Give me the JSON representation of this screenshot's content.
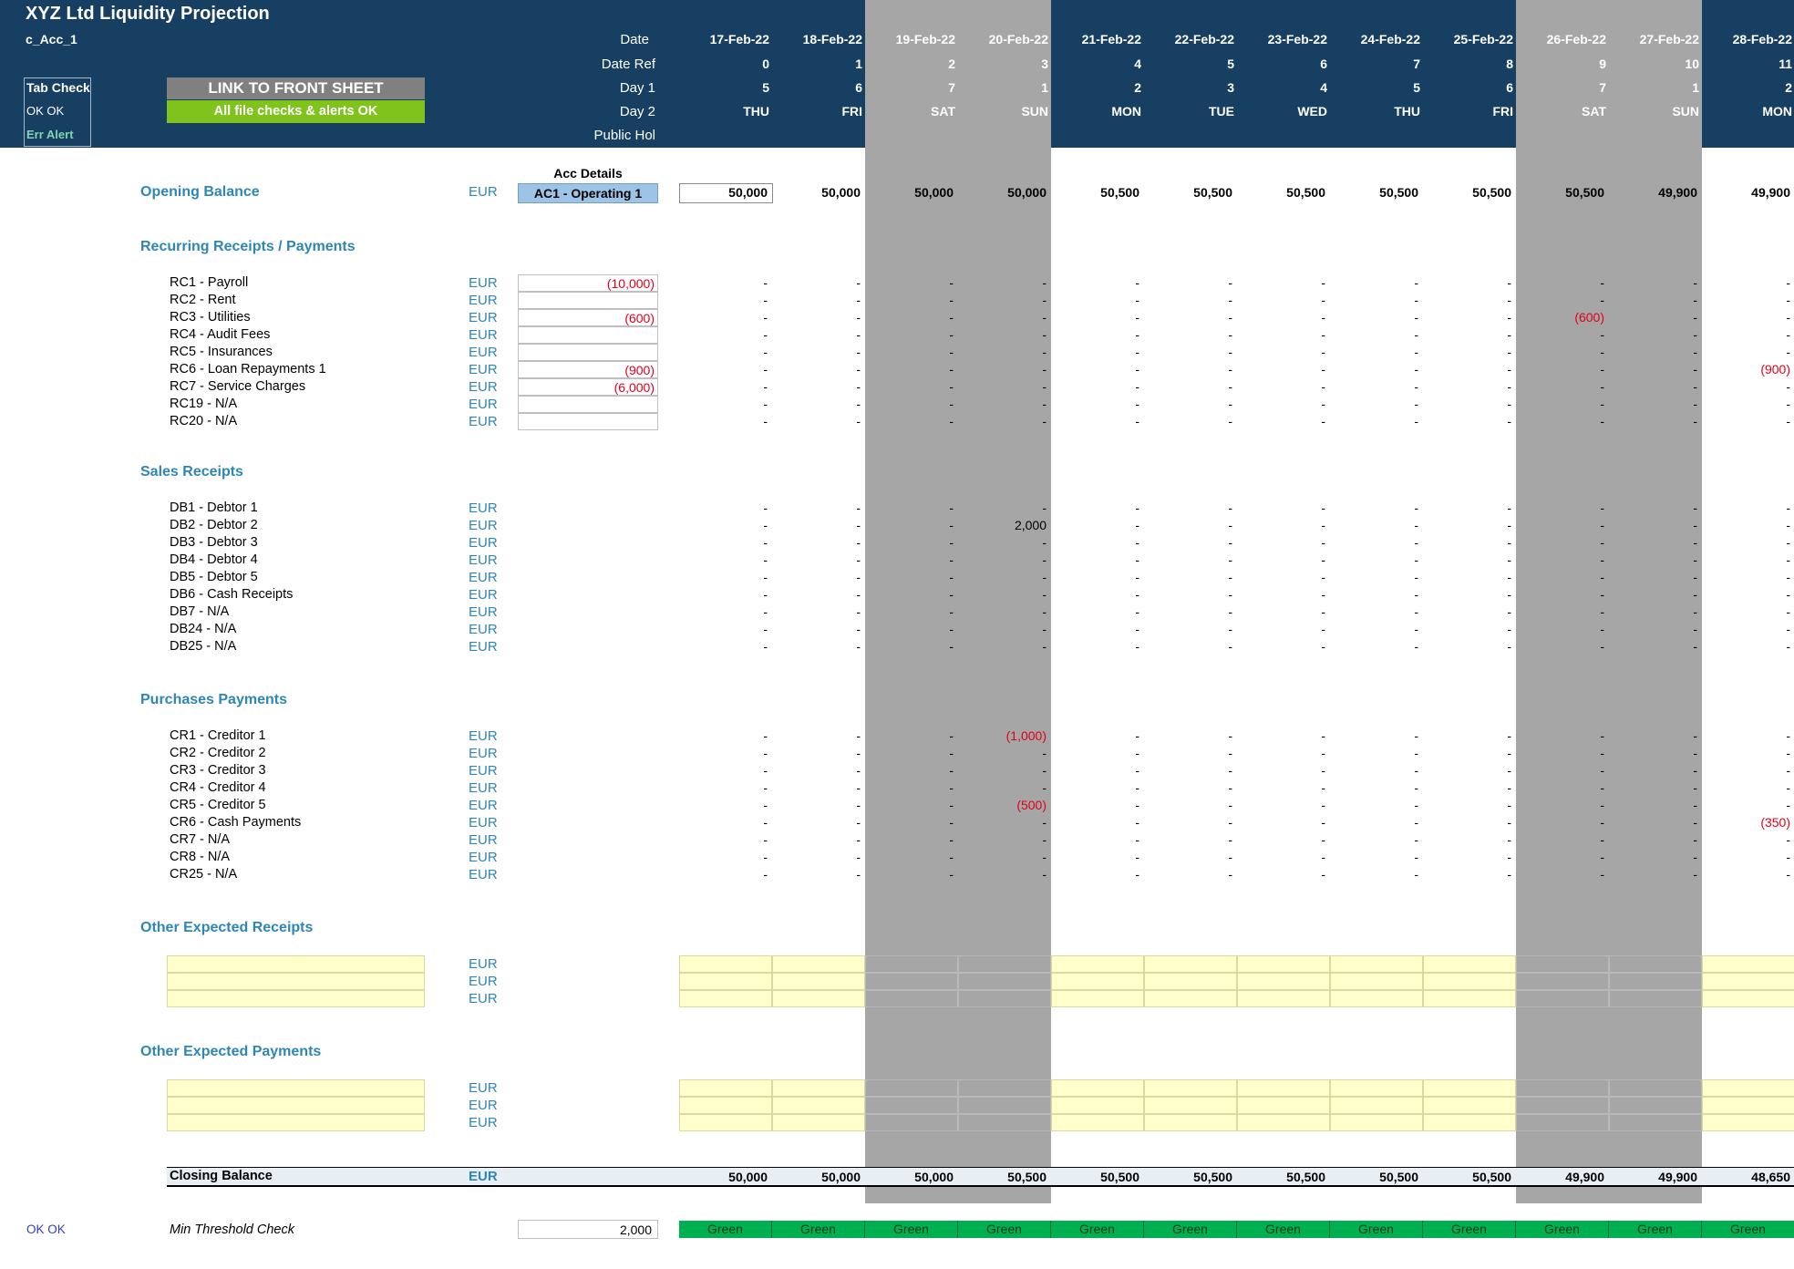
{
  "header": {
    "title": "XYZ Ltd Liquidity Projection",
    "sheet_code": "c_Acc_1",
    "row_labels": {
      "date": "Date",
      "date_ref": "Date Ref",
      "day1": "Day 1",
      "day2": "Day 2",
      "public_hol": "Public Hol"
    },
    "tab_check": {
      "label": "Tab Check",
      "status": "OK OK",
      "err": "Err Alert"
    },
    "link_button": "LINK TO FRONT SHEET",
    "file_checks": "All file checks & alerts OK"
  },
  "colors": {
    "header_bg": "#173f62",
    "weekend": "#a6a6a6",
    "accent": "#2e86b5",
    "negative": "#e0001b",
    "green_status": "#00b050",
    "link_button": "#808080",
    "checks_ok": "#7fc31c",
    "acc_details": "#9dc3e6",
    "yellow_input": "#ffffcc"
  },
  "columns": [
    {
      "date": "17-Feb-22",
      "ref": "0",
      "day1": "5",
      "day2": "THU",
      "weekend": false
    },
    {
      "date": "18-Feb-22",
      "ref": "1",
      "day1": "6",
      "day2": "FRI",
      "weekend": false
    },
    {
      "date": "19-Feb-22",
      "ref": "2",
      "day1": "7",
      "day2": "SAT",
      "weekend": true
    },
    {
      "date": "20-Feb-22",
      "ref": "3",
      "day1": "1",
      "day2": "SUN",
      "weekend": true
    },
    {
      "date": "21-Feb-22",
      "ref": "4",
      "day1": "2",
      "day2": "MON",
      "weekend": false
    },
    {
      "date": "22-Feb-22",
      "ref": "5",
      "day1": "3",
      "day2": "TUE",
      "weekend": false
    },
    {
      "date": "23-Feb-22",
      "ref": "6",
      "day1": "4",
      "day2": "WED",
      "weekend": false
    },
    {
      "date": "24-Feb-22",
      "ref": "7",
      "day1": "5",
      "day2": "THU",
      "weekend": false
    },
    {
      "date": "25-Feb-22",
      "ref": "8",
      "day1": "6",
      "day2": "FRI",
      "weekend": false
    },
    {
      "date": "26-Feb-22",
      "ref": "9",
      "day1": "7",
      "day2": "SAT",
      "weekend": true
    },
    {
      "date": "27-Feb-22",
      "ref": "10",
      "day1": "1",
      "day2": "SUN",
      "weekend": true
    },
    {
      "date": "28-Feb-22",
      "ref": "11",
      "day1": "2",
      "day2": "MON",
      "weekend": false
    }
  ],
  "opening": {
    "label": "Opening Balance",
    "currency": "EUR",
    "acc_details_label": "Acc Details",
    "acc_details_value": "AC1 - Operating 1",
    "values": [
      "50,000",
      "50,000",
      "50,000",
      "50,000",
      "50,500",
      "50,500",
      "50,500",
      "50,500",
      "50,500",
      "50,500",
      "49,900",
      "49,900"
    ]
  },
  "sections": [
    {
      "title": "Recurring Receipts / Payments",
      "has_input": true,
      "rows": [
        {
          "label": "RC1 - Payroll",
          "currency": "EUR",
          "input": "(10,000)",
          "values": [
            "-",
            "-",
            "-",
            "-",
            "-",
            "-",
            "-",
            "-",
            "-",
            "-",
            "-",
            "-"
          ]
        },
        {
          "label": "RC2 - Rent",
          "currency": "EUR",
          "input": "",
          "values": [
            "-",
            "-",
            "-",
            "-",
            "-",
            "-",
            "-",
            "-",
            "-",
            "-",
            "-",
            "-"
          ]
        },
        {
          "label": "RC3 - Utilities",
          "currency": "EUR",
          "input": "(600)",
          "values": [
            "-",
            "-",
            "-",
            "-",
            "-",
            "-",
            "-",
            "-",
            "-",
            "(600)",
            "-",
            "-"
          ]
        },
        {
          "label": "RC4 - Audit Fees",
          "currency": "EUR",
          "input": "",
          "values": [
            "-",
            "-",
            "-",
            "-",
            "-",
            "-",
            "-",
            "-",
            "-",
            "-",
            "-",
            "-"
          ]
        },
        {
          "label": "RC5 - Insurances",
          "currency": "EUR",
          "input": "",
          "values": [
            "-",
            "-",
            "-",
            "-",
            "-",
            "-",
            "-",
            "-",
            "-",
            "-",
            "-",
            "-"
          ]
        },
        {
          "label": "RC6 - Loan Repayments 1",
          "currency": "EUR",
          "input": "(900)",
          "values": [
            "-",
            "-",
            "-",
            "-",
            "-",
            "-",
            "-",
            "-",
            "-",
            "-",
            "-",
            "(900)"
          ]
        },
        {
          "label": "RC7 - Service Charges",
          "currency": "EUR",
          "input": "(6,000)",
          "values": [
            "-",
            "-",
            "-",
            "-",
            "-",
            "-",
            "-",
            "-",
            "-",
            "-",
            "-",
            "-"
          ]
        },
        {
          "label": "RC19 - N/A",
          "currency": "EUR",
          "input": "",
          "values": [
            "-",
            "-",
            "-",
            "-",
            "-",
            "-",
            "-",
            "-",
            "-",
            "-",
            "-",
            "-"
          ]
        },
        {
          "label": "RC20 - N/A",
          "currency": "EUR",
          "input": "",
          "values": [
            "-",
            "-",
            "-",
            "-",
            "-",
            "-",
            "-",
            "-",
            "-",
            "-",
            "-",
            "-"
          ]
        }
      ]
    },
    {
      "title": "Sales Receipts",
      "has_input": false,
      "rows": [
        {
          "label": "DB1 - Debtor 1",
          "currency": "EUR",
          "values": [
            "-",
            "-",
            "-",
            "-",
            "-",
            "-",
            "-",
            "-",
            "-",
            "-",
            "-",
            "-"
          ]
        },
        {
          "label": "DB2 - Debtor 2",
          "currency": "EUR",
          "values": [
            "-",
            "-",
            "-",
            "2,000",
            "-",
            "-",
            "-",
            "-",
            "-",
            "-",
            "-",
            "-"
          ]
        },
        {
          "label": "DB3 - Debtor 3",
          "currency": "EUR",
          "values": [
            "-",
            "-",
            "-",
            "-",
            "-",
            "-",
            "-",
            "-",
            "-",
            "-",
            "-",
            "-"
          ]
        },
        {
          "label": "DB4 - Debtor 4",
          "currency": "EUR",
          "values": [
            "-",
            "-",
            "-",
            "-",
            "-",
            "-",
            "-",
            "-",
            "-",
            "-",
            "-",
            "-"
          ]
        },
        {
          "label": "DB5 - Debtor 5",
          "currency": "EUR",
          "values": [
            "-",
            "-",
            "-",
            "-",
            "-",
            "-",
            "-",
            "-",
            "-",
            "-",
            "-",
            "-"
          ]
        },
        {
          "label": "DB6 - Cash Receipts",
          "currency": "EUR",
          "values": [
            "-",
            "-",
            "-",
            "-",
            "-",
            "-",
            "-",
            "-",
            "-",
            "-",
            "-",
            "-"
          ]
        },
        {
          "label": "DB7 - N/A",
          "currency": "EUR",
          "values": [
            "-",
            "-",
            "-",
            "-",
            "-",
            "-",
            "-",
            "-",
            "-",
            "-",
            "-",
            "-"
          ]
        },
        {
          "label": "DB24 - N/A",
          "currency": "EUR",
          "values": [
            "-",
            "-",
            "-",
            "-",
            "-",
            "-",
            "-",
            "-",
            "-",
            "-",
            "-",
            "-"
          ]
        },
        {
          "label": "DB25 - N/A",
          "currency": "EUR",
          "values": [
            "-",
            "-",
            "-",
            "-",
            "-",
            "-",
            "-",
            "-",
            "-",
            "-",
            "-",
            "-"
          ]
        }
      ]
    },
    {
      "title": "Purchases Payments",
      "has_input": false,
      "rows": [
        {
          "label": "CR1 - Creditor 1",
          "currency": "EUR",
          "values": [
            "-",
            "-",
            "-",
            "(1,000)",
            "-",
            "-",
            "-",
            "-",
            "-",
            "-",
            "-",
            "-"
          ]
        },
        {
          "label": "CR2 - Creditor 2",
          "currency": "EUR",
          "values": [
            "-",
            "-",
            "-",
            "-",
            "-",
            "-",
            "-",
            "-",
            "-",
            "-",
            "-",
            "-"
          ]
        },
        {
          "label": "CR3 - Creditor 3",
          "currency": "EUR",
          "values": [
            "-",
            "-",
            "-",
            "-",
            "-",
            "-",
            "-",
            "-",
            "-",
            "-",
            "-",
            "-"
          ]
        },
        {
          "label": "CR4 - Creditor 4",
          "currency": "EUR",
          "values": [
            "-",
            "-",
            "-",
            "-",
            "-",
            "-",
            "-",
            "-",
            "-",
            "-",
            "-",
            "-"
          ]
        },
        {
          "label": "CR5 - Creditor 5",
          "currency": "EUR",
          "values": [
            "-",
            "-",
            "-",
            "(500)",
            "-",
            "-",
            "-",
            "-",
            "-",
            "-",
            "-",
            "-"
          ]
        },
        {
          "label": "CR6 - Cash Payments",
          "currency": "EUR",
          "values": [
            "-",
            "-",
            "-",
            "-",
            "-",
            "-",
            "-",
            "-",
            "-",
            "-",
            "-",
            "(350)"
          ]
        },
        {
          "label": "CR7 - N/A",
          "currency": "EUR",
          "values": [
            "-",
            "-",
            "-",
            "-",
            "-",
            "-",
            "-",
            "-",
            "-",
            "-",
            "-",
            "-"
          ]
        },
        {
          "label": "CR8 - N/A",
          "currency": "EUR",
          "values": [
            "-",
            "-",
            "-",
            "-",
            "-",
            "-",
            "-",
            "-",
            "-",
            "-",
            "-",
            "-"
          ]
        },
        {
          "label": "CR25 - N/A",
          "currency": "EUR",
          "values": [
            "-",
            "-",
            "-",
            "-",
            "-",
            "-",
            "-",
            "-",
            "-",
            "-",
            "-",
            "-"
          ]
        }
      ]
    }
  ],
  "other_receipts": {
    "title": "Other Expected Receipts",
    "rows": [
      {
        "currency": "EUR"
      },
      {
        "currency": "EUR"
      },
      {
        "currency": "EUR"
      }
    ]
  },
  "other_payments": {
    "title": "Other Expected Payments",
    "rows": [
      {
        "currency": "EUR"
      },
      {
        "currency": "EUR"
      },
      {
        "currency": "EUR"
      }
    ]
  },
  "closing": {
    "label": "Closing Balance",
    "currency": "EUR",
    "values": [
      "50,000",
      "50,000",
      "50,000",
      "50,500",
      "50,500",
      "50,500",
      "50,500",
      "50,500",
      "50,500",
      "49,900",
      "49,900",
      "48,650"
    ]
  },
  "threshold": {
    "status": "OK OK",
    "label": "Min Threshold Check",
    "value": "2,000",
    "values": [
      "Green",
      "Green",
      "Green",
      "Green",
      "Green",
      "Green",
      "Green",
      "Green",
      "Green",
      "Green",
      "Green",
      "Green"
    ]
  }
}
